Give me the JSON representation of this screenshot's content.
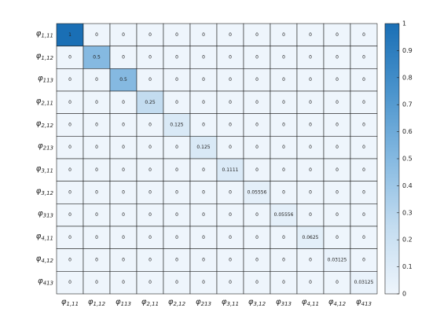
{
  "chart_data": {
    "type": "heatmap",
    "categories": [
      "φ1,11",
      "φ1,12",
      "φ113",
      "φ2,11",
      "φ2,12",
      "φ213",
      "φ3,11",
      "φ3,12",
      "φ313",
      "φ4,11",
      "φ4,12",
      "φ413"
    ],
    "values": [
      [
        1,
        0,
        0,
        0,
        0,
        0,
        0,
        0,
        0,
        0,
        0,
        0
      ],
      [
        0,
        0.5,
        0,
        0,
        0,
        0,
        0,
        0,
        0,
        0,
        0,
        0
      ],
      [
        0,
        0,
        0.5,
        0,
        0,
        0,
        0,
        0,
        0,
        0,
        0,
        0
      ],
      [
        0,
        0,
        0,
        0.25,
        0,
        0,
        0,
        0,
        0,
        0,
        0,
        0
      ],
      [
        0,
        0,
        0,
        0,
        0.125,
        0,
        0,
        0,
        0,
        0,
        0,
        0
      ],
      [
        0,
        0,
        0,
        0,
        0,
        0.125,
        0,
        0,
        0,
        0,
        0,
        0
      ],
      [
        0,
        0,
        0,
        0,
        0,
        0,
        0.1111,
        0,
        0,
        0,
        0,
        0
      ],
      [
        0,
        0,
        0,
        0,
        0,
        0,
        0,
        0.05556,
        0,
        0,
        0,
        0
      ],
      [
        0,
        0,
        0,
        0,
        0,
        0,
        0,
        0,
        0.05556,
        0,
        0,
        0
      ],
      [
        0,
        0,
        0,
        0,
        0,
        0,
        0,
        0,
        0,
        0.0625,
        0,
        0
      ],
      [
        0,
        0,
        0,
        0,
        0,
        0,
        0,
        0,
        0,
        0,
        0.03125,
        0
      ],
      [
        0,
        0,
        0,
        0,
        0,
        0,
        0,
        0,
        0,
        0,
        0,
        0.03125
      ]
    ],
    "zlim": [
      0,
      1
    ],
    "zticks": [
      0,
      0.1,
      0.2,
      0.3,
      0.4,
      0.5,
      0.6,
      0.7,
      0.8,
      0.9,
      1
    ],
    "colormap": [
      "#eef5fc",
      "#c3dcf0",
      "#85b9e1",
      "#4a93cc",
      "#1a6fb5"
    ]
  }
}
